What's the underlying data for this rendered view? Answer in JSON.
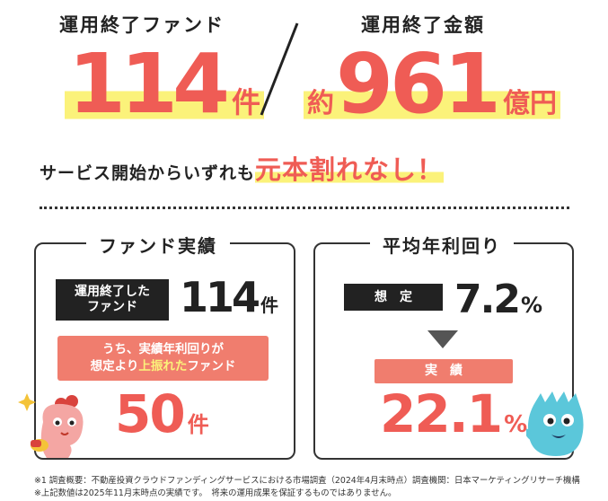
{
  "top": {
    "left_label": "運用終了ファンド",
    "left_value": "114",
    "left_unit": "件",
    "right_label": "運用終了金額",
    "right_prefix": "約",
    "right_value": "961",
    "right_unit": "億円"
  },
  "tagline": {
    "text": "サービス開始からいずれも",
    "emphasis": "元本割れなし！"
  },
  "fund_card": {
    "title": "ファンド実績",
    "completed_label_line1": "運用終了した",
    "completed_label_line2": "ファンド",
    "completed_value": "114",
    "completed_unit": "件",
    "above_label_line1": "うち、実績年利回りが",
    "above_label_line2_a": "想定より",
    "above_label_line2_b": "上振れた",
    "above_label_line2_c": "ファンド",
    "above_value": "50",
    "above_unit": "件"
  },
  "yield_card": {
    "title": "平均年利回り",
    "expected_label": "想　定",
    "expected_value": "7.2",
    "expected_unit": "%",
    "actual_label": "実　績",
    "actual_value": "22.1",
    "actual_unit": "%"
  },
  "footnotes": {
    "line1": "※1 調査概要：不動産投資クラウドファンディングサービスにおける市場調査（2024年4月末時点）調査機関：日本マーケティングリサーチ機構",
    "line2": "※上記数値は2025年11月末時点の実績です。　将来の運用成果を保証するものではありません。"
  },
  "colors": {
    "accent": "#ef5c55",
    "highlight": "#fbf27a",
    "dark": "#222222",
    "salmon": "#f07d6e",
    "mascot_blue": "#5bc7da"
  },
  "icons": [
    "pink-mascot-icon",
    "blue-mascot-icon",
    "sparkle-icon",
    "down-triangle-icon"
  ]
}
